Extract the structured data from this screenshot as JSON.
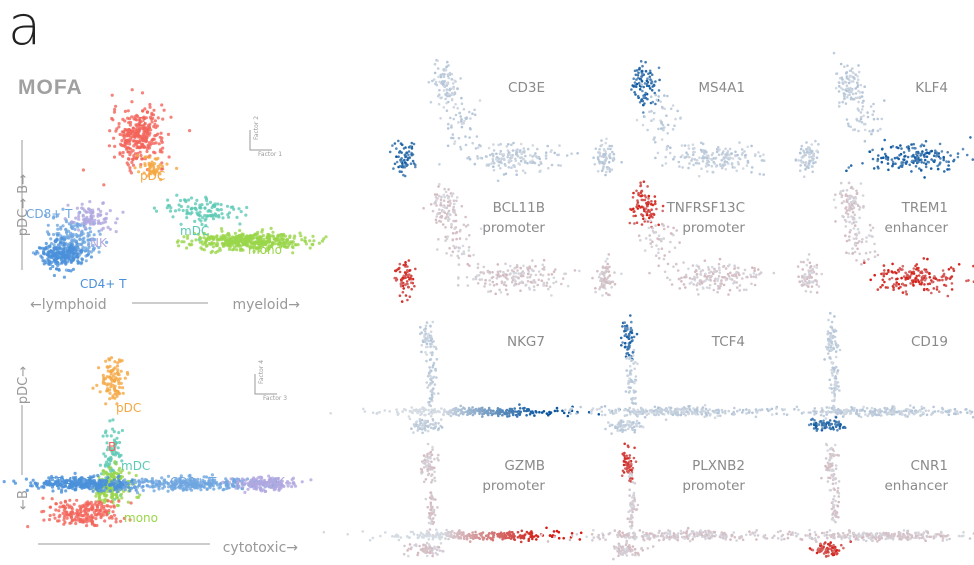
{
  "figure": {
    "panel_letter": "a",
    "method_title": "MOFA",
    "colors": {
      "B": "#f2645a",
      "pDC": "#f5a742",
      "mDC": "#5cc9b5",
      "mono": "#9ad64a",
      "CD8+ T": "#6fa6e0",
      "CD4+ T": "#4a90d9",
      "NK": "#b0a8e0",
      "axis": "#999999",
      "blue_scale_high": "#0b57a0",
      "red_scale_high": "#d41a12",
      "background_cells": "#d5dbe3"
    }
  },
  "chart_data": [
    {
      "type": "scatter",
      "id": "embedding-factor1-factor2",
      "xlabel_left": "←lymphoid",
      "xlabel_right": "myeloid→",
      "ylabel_top": "pDC→ B→",
      "legend_axis_label_y": "Factor 2",
      "legend_axis_label_x": "Factor 1",
      "series": [
        {
          "name": "B",
          "color": "#f2645a",
          "cx": 0.4,
          "cy": 0.88,
          "sx": 0.05,
          "sy": 0.08,
          "n": 300
        },
        {
          "name": "pDC",
          "color": "#f5a742",
          "cx": 0.45,
          "cy": 0.7,
          "sx": 0.03,
          "sy": 0.03,
          "n": 50
        },
        {
          "name": "mDC",
          "color": "#5cc9b5",
          "cx": 0.65,
          "cy": 0.45,
          "sx": 0.08,
          "sy": 0.04,
          "n": 110
        },
        {
          "name": "mono",
          "color": "#9ad64a",
          "cx": 0.82,
          "cy": 0.28,
          "sx": 0.11,
          "sy": 0.025,
          "n": 420
        },
        {
          "name": "CD8+ T",
          "color": "#6fa6e0",
          "cx": 0.14,
          "cy": 0.28,
          "sx": 0.05,
          "sy": 0.06,
          "n": 220
        },
        {
          "name": "CD4+ T",
          "color": "#4a90d9",
          "cx": 0.1,
          "cy": 0.2,
          "sx": 0.04,
          "sy": 0.04,
          "n": 200
        },
        {
          "name": "NK",
          "color": "#b0a8e0",
          "cx": 0.22,
          "cy": 0.42,
          "sx": 0.05,
          "sy": 0.04,
          "n": 80
        }
      ],
      "cluster_labels": [
        "B",
        "pDC",
        "mDC",
        "mono",
        "CD8+ T",
        "NK",
        "CD4+ T"
      ]
    },
    {
      "type": "scatter",
      "id": "embedding-factor3-factor4",
      "xlabel_right": "cytotoxic→",
      "ylabel_top": "pDC→",
      "ylabel_bottom": "←B",
      "legend_axis_label_y": "Factor 4",
      "legend_axis_label_x": "Factor 3",
      "series": [
        {
          "name": "pDC",
          "color": "#f5a742",
          "cx": 0.3,
          "cy": 0.88,
          "sx": 0.03,
          "sy": 0.06,
          "n": 90
        },
        {
          "name": "mDC",
          "color": "#5cc9b5",
          "cx": 0.3,
          "cy": 0.45,
          "sx": 0.02,
          "sy": 0.1,
          "n": 90
        },
        {
          "name": "mono",
          "color": "#9ad64a",
          "cx": 0.3,
          "cy": 0.3,
          "sx": 0.035,
          "sy": 0.05,
          "n": 160
        },
        {
          "name": "CD4+ T",
          "color": "#4a90d9",
          "cx": 0.2,
          "cy": 0.31,
          "sx": 0.1,
          "sy": 0.018,
          "n": 300
        },
        {
          "name": "CD8+ T",
          "color": "#6fa6e0",
          "cx": 0.6,
          "cy": 0.31,
          "sx": 0.14,
          "sy": 0.018,
          "n": 300
        },
        {
          "name": "NK",
          "color": "#b0a8e0",
          "cx": 0.88,
          "cy": 0.31,
          "sx": 0.06,
          "sy": 0.02,
          "n": 140
        },
        {
          "name": "B",
          "color": "#f2645a",
          "cx": 0.18,
          "cy": 0.15,
          "sx": 0.07,
          "sy": 0.04,
          "n": 200
        }
      ],
      "cluster_labels": [
        "pDC",
        "mDC",
        "CD4+ T",
        "CD8+ T",
        "NK",
        "mono",
        "B"
      ]
    },
    {
      "type": "scatter",
      "id": "feature-grid",
      "panels": [
        {
          "title": "CD3E",
          "subtitle": "",
          "scale": "blue",
          "embedding": 1,
          "high": "lymphoid"
        },
        {
          "title": "MS4A1",
          "subtitle": "",
          "scale": "blue",
          "embedding": 1,
          "high": "B"
        },
        {
          "title": "KLF4",
          "subtitle": "",
          "scale": "blue",
          "embedding": 1,
          "high": "myeloid"
        },
        {
          "title": "BCL11B",
          "subtitle": "promoter",
          "scale": "red",
          "embedding": 1,
          "high": "lymphoid"
        },
        {
          "title": "TNFRSF13C",
          "subtitle": "promoter",
          "scale": "red",
          "embedding": 1,
          "high": "B"
        },
        {
          "title": "TREM1",
          "subtitle": "enhancer",
          "scale": "red",
          "embedding": 1,
          "high": "myeloid"
        },
        {
          "title": "NKG7",
          "subtitle": "",
          "scale": "blue",
          "embedding": 2,
          "high": "cytotoxic"
        },
        {
          "title": "TCF4",
          "subtitle": "",
          "scale": "blue",
          "embedding": 2,
          "high": "pDC"
        },
        {
          "title": "CD19",
          "subtitle": "",
          "scale": "blue",
          "embedding": 2,
          "high": "B"
        },
        {
          "title": "GZMB",
          "subtitle": "promoter",
          "scale": "red",
          "embedding": 2,
          "high": "cytotoxic"
        },
        {
          "title": "PLXNB2",
          "subtitle": "promoter",
          "scale": "red",
          "embedding": 2,
          "high": "pDC"
        },
        {
          "title": "CNR1",
          "subtitle": "enhancer",
          "scale": "red",
          "embedding": 2,
          "high": "B"
        }
      ]
    }
  ]
}
